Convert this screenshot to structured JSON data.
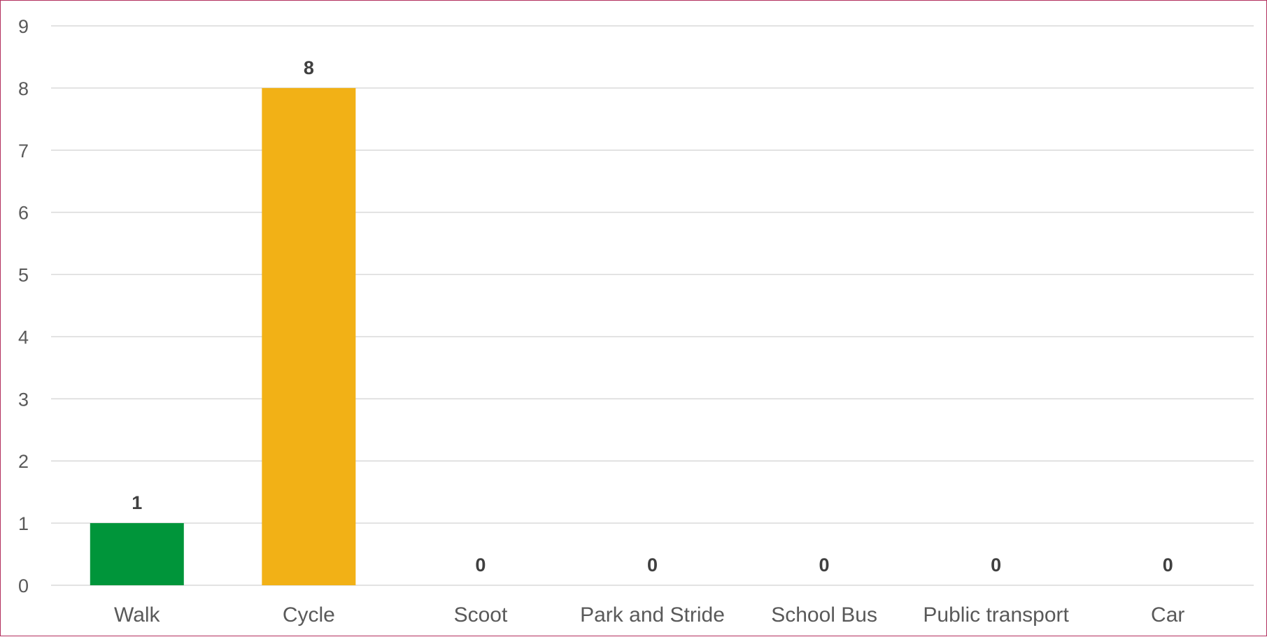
{
  "chart_data": {
    "type": "bar",
    "categories": [
      "Walk",
      "Cycle",
      "Scoot",
      "Park and Stride",
      "School Bus",
      "Public transport",
      "Car"
    ],
    "values": [
      1,
      8,
      0,
      0,
      0,
      0,
      0
    ],
    "data_labels": [
      "1",
      "8",
      "0",
      "0",
      "0",
      "0",
      "0"
    ],
    "bar_colors": [
      "#00953a",
      "#f2b116",
      "#f2b116",
      "#f2b116",
      "#f2b116",
      "#f2b116",
      "#f2b116"
    ],
    "title": "",
    "xlabel": "",
    "ylabel": "",
    "ylim": [
      0,
      9
    ],
    "yticks": [
      "0",
      "1",
      "2",
      "3",
      "4",
      "5",
      "6",
      "7",
      "8",
      "9"
    ],
    "grid": true,
    "legend": "none"
  }
}
